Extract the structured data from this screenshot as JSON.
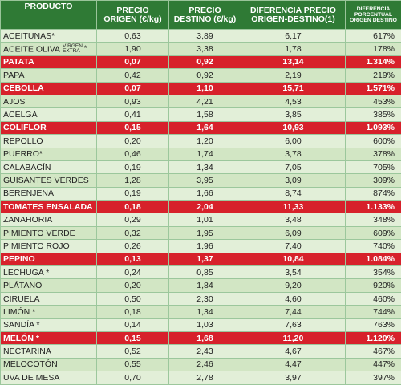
{
  "headers": {
    "producto": "PRODUCTO",
    "origen_1": "PRECIO",
    "origen_2": "ORIGEN (€/kg)",
    "destino_1": "PRECIO",
    "destino_2": "DESTINO (€/kg)",
    "diferencia_1": "DIFERENCIA PRECIO",
    "diferencia_2": "ORIGEN-DESTINO(1)",
    "porcentual_1": "Diferencia",
    "porcentual_2": "porcentual",
    "porcentual_3": "origen destino"
  },
  "rows": [
    {
      "producto": "ACEITUNAS*",
      "origen": "0,63",
      "destino": "3,89",
      "diferencia": "6,17",
      "porcentual": "617%",
      "highlight": false
    },
    {
      "producto": "ACEITE OLIVA",
      "suffix_sup": "VIRGEN",
      "suffix_sub": "EXTRA",
      "suffix_star": "*",
      "origen": "1,90",
      "destino": "3,38",
      "diferencia": "1,78",
      "porcentual": "178%",
      "highlight": false
    },
    {
      "producto": "PATATA",
      "origen": "0,07",
      "destino": "0,92",
      "diferencia": "13,14",
      "porcentual": "1.314%",
      "highlight": true
    },
    {
      "producto": "PAPA",
      "origen": "0,42",
      "destino": "0,92",
      "diferencia": "2,19",
      "porcentual": "219%",
      "highlight": false
    },
    {
      "producto": "CEBOLLA",
      "origen": "0,07",
      "destino": "1,10",
      "diferencia": "15,71",
      "porcentual": "1.571%",
      "highlight": true
    },
    {
      "producto": "AJOS",
      "origen": "0,93",
      "destino": "4,21",
      "diferencia": "4,53",
      "porcentual": "453%",
      "highlight": false
    },
    {
      "producto": "ACELGA",
      "origen": "0,41",
      "destino": "1,58",
      "diferencia": "3,85",
      "porcentual": "385%",
      "highlight": false
    },
    {
      "producto": "COLIFLOR",
      "origen": "0,15",
      "destino": "1,64",
      "diferencia": "10,93",
      "porcentual": "1.093%",
      "highlight": true
    },
    {
      "producto": "REPOLLO",
      "origen": "0,20",
      "destino": "1,20",
      "diferencia": "6,00",
      "porcentual": "600%",
      "highlight": false
    },
    {
      "producto": "PUERRO*",
      "origen": "0,46",
      "destino": "1,74",
      "diferencia": "3,78",
      "porcentual": "378%",
      "highlight": false
    },
    {
      "producto": "CALABACÍN",
      "origen": "0,19",
      "destino": "1,34",
      "diferencia": "7,05",
      "porcentual": "705%",
      "highlight": false
    },
    {
      "producto": "GUISANTES VERDES",
      "origen": "1,28",
      "destino": "3,95",
      "diferencia": "3,09",
      "porcentual": "309%",
      "highlight": false
    },
    {
      "producto": "BERENJENA",
      "origen": "0,19",
      "destino": "1,66",
      "diferencia": "8,74",
      "porcentual": "874%",
      "highlight": false
    },
    {
      "producto": "TOMATES ENSALADA",
      "origen": "0,18",
      "destino": "2,04",
      "diferencia": "11,33",
      "porcentual": "1.133%",
      "highlight": true
    },
    {
      "producto": "ZANAHORIA",
      "origen": "0,29",
      "destino": "1,01",
      "diferencia": "3,48",
      "porcentual": "348%",
      "highlight": false
    },
    {
      "producto": "PIMIENTO VERDE",
      "origen": "0,32",
      "destino": "1,95",
      "diferencia": "6,09",
      "porcentual": "609%",
      "highlight": false
    },
    {
      "producto": "PIMIENTO ROJO",
      "origen": "0,26",
      "destino": "1,96",
      "diferencia": "7,40",
      "porcentual": "740%",
      "highlight": false
    },
    {
      "producto": "PEPINO",
      "origen": "0,13",
      "destino": "1,37",
      "diferencia": "10,84",
      "porcentual": "1.084%",
      "highlight": true
    },
    {
      "producto": "LECHUGA *",
      "origen": "0,24",
      "destino": "0,85",
      "diferencia": "3,54",
      "porcentual": "354%",
      "highlight": false
    },
    {
      "producto": "PLÁTANO",
      "origen": "0,20",
      "destino": "1,84",
      "diferencia": "9,20",
      "porcentual": "920%",
      "highlight": false
    },
    {
      "producto": "CIRUELA",
      "origen": "0,50",
      "destino": "2,30",
      "diferencia": "4,60",
      "porcentual": "460%",
      "highlight": false
    },
    {
      "producto": "LIMÓN *",
      "origen": "0,18",
      "destino": "1,34",
      "diferencia": "7,44",
      "porcentual": "744%",
      "highlight": false
    },
    {
      "producto": "SANDÍA *",
      "origen": "0,14",
      "destino": "1,03",
      "diferencia": "7,63",
      "porcentual": "763%",
      "highlight": false
    },
    {
      "producto": "MELÓN *",
      "origen": "0,15",
      "destino": "1,68",
      "diferencia": "11,20",
      "porcentual": "1.120%",
      "highlight": true
    },
    {
      "producto": "NECTARINA",
      "origen": "0,52",
      "destino": "2,43",
      "diferencia": "4,67",
      "porcentual": "467%",
      "highlight": false
    },
    {
      "producto": "MELOCOTÓN",
      "origen": "0,55",
      "destino": "2,46",
      "diferencia": "4,47",
      "porcentual": "447%",
      "highlight": false
    },
    {
      "producto": "UVA DE MESA",
      "origen": "0,70",
      "destino": "2,78",
      "diferencia": "3,97",
      "porcentual": "397%",
      "highlight": false
    }
  ],
  "colors": {
    "header_green": "#2f7a35",
    "row_light": "#e2efd8",
    "row_alt": "#d2e6c4",
    "highlight_red": "#d7212b",
    "border": "#9cc79c"
  }
}
